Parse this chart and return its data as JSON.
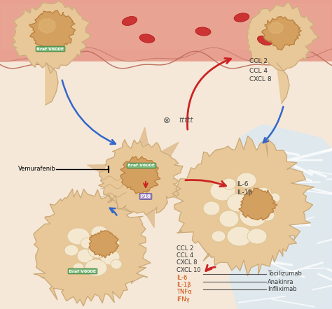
{
  "bg_color": "#f5e8d8",
  "vessel_color": "#e8a090",
  "vessel_inner": "#f0b8a8",
  "cell_body_color": "#e8c898",
  "cell_highlight": "#f5deb3",
  "cell_dark": "#c8a070",
  "nucleus_color": "#c8903c",
  "rbc_color": "#cc3333",
  "blue_arrow_color": "#3366cc",
  "red_arrow_color": "#cc2222",
  "label_green_bg": "#7ab87a",
  "label_purple_bg": "#b09dc8",
  "senescent_color": "#e8c080",
  "tissue_color": "#d8d8e8",
  "title": "",
  "labels_bottom_red": [
    "CCL 2",
    "CCL 4",
    "CXCL 8",
    "CXCL 10",
    "IL-6",
    "IL-1β",
    "TNFα",
    "IFNγ"
  ],
  "labels_top_right": [
    "CCL 2",
    "CCL 4",
    "CXCL 8"
  ],
  "labels_il": [
    "IL-6",
    "IL-1β"
  ],
  "labels_drugs": [
    "Tocilizumab",
    "Anakinra",
    "Infliximab"
  ],
  "label_vemurafenib": "Vemurafenib",
  "label_braf": "Braf V600E",
  "label_p16": "P16",
  "white_fiber_color": "#dde8f0"
}
